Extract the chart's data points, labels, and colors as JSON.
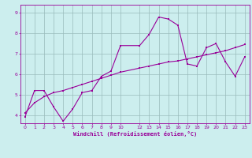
{
  "xlabel": "Windchill (Refroidissement éolien,°C)",
  "bg_color": "#cceeee",
  "line_color": "#990099",
  "grid_color": "#99bbbb",
  "xlim": [
    -0.5,
    23.5
  ],
  "ylim": [
    3.6,
    9.4
  ],
  "xticks": [
    0,
    1,
    2,
    3,
    4,
    5,
    6,
    7,
    8,
    9,
    10,
    12,
    13,
    14,
    15,
    16,
    17,
    18,
    19,
    20,
    21,
    22,
    23
  ],
  "yticks": [
    4,
    5,
    6,
    7,
    8,
    9
  ],
  "curve1_x": [
    0,
    1,
    2,
    3,
    4,
    5,
    6,
    7,
    8,
    9,
    10,
    12,
    13,
    14,
    15,
    16,
    17,
    18,
    19,
    20,
    21,
    22,
    23
  ],
  "curve1_y": [
    3.9,
    5.2,
    5.2,
    4.4,
    3.7,
    4.3,
    5.1,
    5.2,
    5.9,
    6.15,
    7.4,
    7.4,
    7.95,
    8.8,
    8.7,
    8.4,
    6.5,
    6.4,
    7.3,
    7.5,
    6.6,
    5.9,
    6.85
  ],
  "curve2_x": [
    0,
    1,
    2,
    3,
    4,
    5,
    6,
    7,
    8,
    9,
    10,
    12,
    13,
    14,
    15,
    16,
    17,
    18,
    19,
    20,
    21,
    22,
    23
  ],
  "curve2_y": [
    4.1,
    4.6,
    4.9,
    5.1,
    5.2,
    5.35,
    5.5,
    5.65,
    5.8,
    5.95,
    6.1,
    6.3,
    6.4,
    6.5,
    6.6,
    6.65,
    6.75,
    6.85,
    6.95,
    7.05,
    7.15,
    7.3,
    7.45
  ],
  "figsize": [
    3.2,
    2.0
  ],
  "dpi": 100
}
